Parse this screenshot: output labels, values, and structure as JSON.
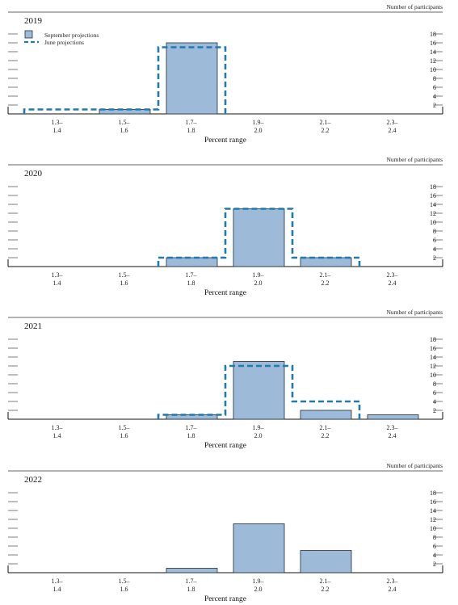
{
  "chart_data": {
    "type": "bar",
    "categories": [
      [
        "1.3–",
        "1.4"
      ],
      [
        "1.5–",
        "1.6"
      ],
      [
        "1.7–",
        "1.8"
      ],
      [
        "1.9–",
        "2.0"
      ],
      [
        "2.1–",
        "2.2"
      ],
      [
        "2.3–",
        "2.4"
      ]
    ],
    "xlabel": "Percent range",
    "ylabel": "Number of participants",
    "ylim": [
      0,
      20
    ],
    "yticks": [
      2,
      4,
      6,
      8,
      10,
      12,
      14,
      16,
      18
    ],
    "legend": {
      "placement": "top-left",
      "bar_label": "September projections",
      "line_label": "June projections"
    },
    "colors": {
      "bar_fill": "#9dbbd9",
      "bar_stroke": "#1f2d3d",
      "june_line": "#1f7bae",
      "axis": "#333333"
    },
    "panels": [
      {
        "year": "2019",
        "september": [
          0,
          1,
          16,
          0,
          0,
          0
        ],
        "june": [
          1,
          1,
          15,
          0,
          0,
          0
        ],
        "show_legend": true
      },
      {
        "year": "2020",
        "september": [
          0,
          0,
          2,
          13,
          2,
          0
        ],
        "june": [
          0,
          0,
          2,
          13,
          2,
          0
        ],
        "show_legend": false
      },
      {
        "year": "2021",
        "september": [
          0,
          0,
          1,
          13,
          2,
          1
        ],
        "june": [
          0,
          0,
          1,
          12,
          4,
          0
        ],
        "show_legend": false
      },
      {
        "year": "2022",
        "september": [
          0,
          0,
          1,
          11,
          5,
          0
        ],
        "june": null,
        "show_legend": false
      }
    ]
  }
}
